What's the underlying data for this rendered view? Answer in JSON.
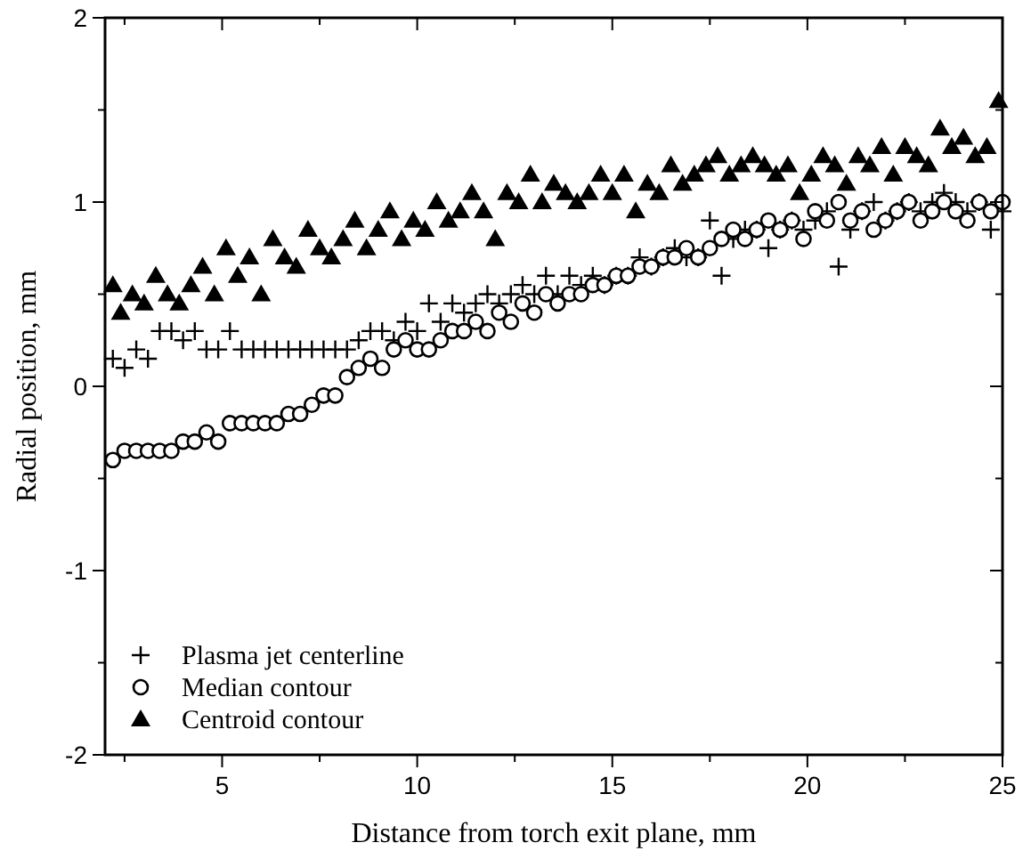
{
  "chart_data": {
    "type": "scatter",
    "xlabel": "Distance from torch exit plane, mm",
    "ylabel": "Radial position, mm",
    "xlim": [
      2,
      25
    ],
    "ylim": [
      -2,
      2
    ],
    "xticks": [
      {
        "value": 2.5,
        "label": null
      },
      5,
      {
        "value": 7.5,
        "label": null
      },
      10,
      {
        "value": 12.5,
        "label": null
      },
      15,
      {
        "value": 17.5,
        "label": null
      },
      20,
      {
        "value": 22.5,
        "label": null
      },
      25
    ],
    "yticks": [
      -2,
      {
        "value": -1.5,
        "label": null
      },
      -1,
      {
        "value": -0.5,
        "label": null
      },
      0,
      {
        "value": 0.5,
        "label": null
      },
      1,
      {
        "value": 1.5,
        "label": null
      },
      2
    ],
    "grid": false,
    "legend": "bottom left",
    "series": [
      {
        "name": "Plasma jet centerline",
        "color": "#000000",
        "marker": "cross",
        "x": [
          2.2,
          2.5,
          2.8,
          3.1,
          3.4,
          3.7,
          4.0,
          4.3,
          4.6,
          4.9,
          5.2,
          5.5,
          5.8,
          6.1,
          6.4,
          6.7,
          7.0,
          7.3,
          7.6,
          7.9,
          8.2,
          8.5,
          8.8,
          9.1,
          9.4,
          9.7,
          10.0,
          10.3,
          10.6,
          10.9,
          11.2,
          11.5,
          11.8,
          12.1,
          12.4,
          12.7,
          13.0,
          13.3,
          13.6,
          13.9,
          14.2,
          14.5,
          14.8,
          15.1,
          15.4,
          15.7,
          16.0,
          16.3,
          16.6,
          16.9,
          17.2,
          17.5,
          17.8,
          18.1,
          18.4,
          18.7,
          19.0,
          19.3,
          19.6,
          19.9,
          20.2,
          20.5,
          20.8,
          21.1,
          21.4,
          21.7,
          22.0,
          22.3,
          22.6,
          22.9,
          23.2,
          23.5,
          23.8,
          24.1,
          24.4,
          24.7,
          25.0
        ],
        "values": [
          0.15,
          0.1,
          0.2,
          0.15,
          0.3,
          0.3,
          0.25,
          0.3,
          0.2,
          0.2,
          0.3,
          0.2,
          0.2,
          0.2,
          0.2,
          0.2,
          0.2,
          0.2,
          0.2,
          0.2,
          0.2,
          0.25,
          0.3,
          0.3,
          0.25,
          0.35,
          0.3,
          0.45,
          0.35,
          0.45,
          0.4,
          0.45,
          0.5,
          0.45,
          0.5,
          0.55,
          0.5,
          0.6,
          0.5,
          0.6,
          0.55,
          0.6,
          0.55,
          0.6,
          0.6,
          0.7,
          0.65,
          0.7,
          0.75,
          0.7,
          0.7,
          0.9,
          0.6,
          0.8,
          0.85,
          0.85,
          0.75,
          0.85,
          0.9,
          0.85,
          0.9,
          0.95,
          0.65,
          0.85,
          0.95,
          1.0,
          0.9,
          0.95,
          1.0,
          0.95,
          1.0,
          1.05,
          1.0,
          0.95,
          1.0,
          0.85,
          0.95
        ]
      },
      {
        "name": "Median contour",
        "color": "#000000",
        "marker": "circle",
        "x": [
          2.2,
          2.5,
          2.8,
          3.1,
          3.4,
          3.7,
          4.0,
          4.3,
          4.6,
          4.9,
          5.2,
          5.5,
          5.8,
          6.1,
          6.4,
          6.7,
          7.0,
          7.3,
          7.6,
          7.9,
          8.2,
          8.5,
          8.8,
          9.1,
          9.4,
          9.7,
          10.0,
          10.3,
          10.6,
          10.9,
          11.2,
          11.5,
          11.8,
          12.1,
          12.4,
          12.7,
          13.0,
          13.3,
          13.6,
          13.9,
          14.2,
          14.5,
          14.8,
          15.1,
          15.4,
          15.7,
          16.0,
          16.3,
          16.6,
          16.9,
          17.2,
          17.5,
          17.8,
          18.1,
          18.4,
          18.7,
          19.0,
          19.3,
          19.6,
          19.9,
          20.2,
          20.5,
          20.8,
          21.1,
          21.4,
          21.7,
          22.0,
          22.3,
          22.6,
          22.9,
          23.2,
          23.5,
          23.8,
          24.1,
          24.4,
          24.7,
          25.0
        ],
        "values": [
          -0.4,
          -0.35,
          -0.35,
          -0.35,
          -0.35,
          -0.35,
          -0.3,
          -0.3,
          -0.25,
          -0.3,
          -0.2,
          -0.2,
          -0.2,
          -0.2,
          -0.2,
          -0.15,
          -0.15,
          -0.1,
          -0.05,
          -0.05,
          0.05,
          0.1,
          0.15,
          0.1,
          0.2,
          0.25,
          0.2,
          0.2,
          0.25,
          0.3,
          0.3,
          0.35,
          0.3,
          0.4,
          0.35,
          0.45,
          0.4,
          0.5,
          0.45,
          0.5,
          0.5,
          0.55,
          0.55,
          0.6,
          0.6,
          0.65,
          0.65,
          0.7,
          0.7,
          0.75,
          0.7,
          0.75,
          0.8,
          0.85,
          0.8,
          0.85,
          0.9,
          0.85,
          0.9,
          0.8,
          0.95,
          0.9,
          1.0,
          0.9,
          0.95,
          0.85,
          0.9,
          0.95,
          1.0,
          0.9,
          0.95,
          1.0,
          0.95,
          0.9,
          1.0,
          0.95,
          1.0
        ]
      },
      {
        "name": "Centroid contour",
        "color": "#000000",
        "marker": "triangle",
        "x": [
          2.2,
          2.4,
          2.7,
          3.0,
          3.3,
          3.6,
          3.9,
          4.2,
          4.5,
          4.8,
          5.1,
          5.4,
          5.7,
          6.0,
          6.3,
          6.6,
          6.9,
          7.2,
          7.5,
          7.8,
          8.1,
          8.4,
          8.7,
          9.0,
          9.3,
          9.6,
          9.9,
          10.2,
          10.5,
          10.8,
          11.1,
          11.4,
          11.7,
          12.0,
          12.3,
          12.6,
          12.9,
          13.2,
          13.5,
          13.8,
          14.1,
          14.4,
          14.7,
          15.0,
          15.3,
          15.6,
          15.9,
          16.2,
          16.5,
          16.8,
          17.1,
          17.4,
          17.7,
          18.0,
          18.3,
          18.6,
          18.9,
          19.2,
          19.5,
          19.8,
          20.1,
          20.4,
          20.7,
          21.0,
          21.3,
          21.6,
          21.9,
          22.2,
          22.5,
          22.8,
          23.1,
          23.4,
          23.7,
          24.0,
          24.3,
          24.6,
          24.9
        ],
        "values": [
          0.55,
          0.4,
          0.5,
          0.45,
          0.6,
          0.5,
          0.45,
          0.55,
          0.65,
          0.5,
          0.75,
          0.6,
          0.7,
          0.5,
          0.8,
          0.7,
          0.65,
          0.85,
          0.75,
          0.7,
          0.8,
          0.9,
          0.75,
          0.85,
          0.95,
          0.8,
          0.9,
          0.85,
          1.0,
          0.9,
          0.95,
          1.05,
          0.95,
          0.8,
          1.05,
          1.0,
          1.15,
          1.0,
          1.1,
          1.05,
          1.0,
          1.05,
          1.15,
          1.05,
          1.15,
          0.95,
          1.1,
          1.05,
          1.2,
          1.1,
          1.15,
          1.2,
          1.25,
          1.15,
          1.2,
          1.25,
          1.2,
          1.15,
          1.2,
          1.05,
          1.15,
          1.25,
          1.2,
          1.1,
          1.25,
          1.2,
          1.3,
          1.15,
          1.3,
          1.25,
          1.2,
          1.4,
          1.3,
          1.35,
          1.25,
          1.3,
          1.55
        ]
      }
    ]
  }
}
